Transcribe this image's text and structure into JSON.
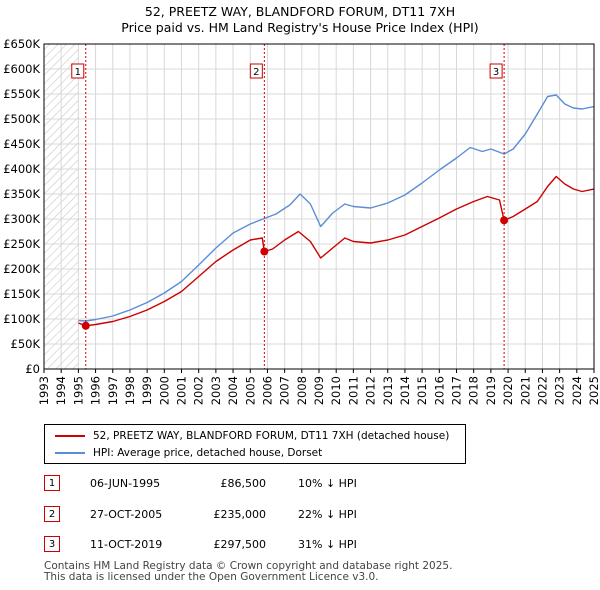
{
  "title_line1": "52, PREETZ WAY, BLANDFORD FORUM, DT11 7XH",
  "title_line2": "Price paid vs. HM Land Registry's House Price Index (HPI)",
  "colors": {
    "price": "#cc0000",
    "hpi": "#5b8dd6",
    "grid": "#d8d8d8",
    "hatch": "#c8c8c8",
    "shade": "#e4ecf8"
  },
  "chart_data": {
    "type": "line",
    "title": "52, PREETZ WAY, BLANDFORD FORUM, DT11 7XH — Price paid vs. HM Land Registry's House Price Index (HPI)",
    "xlim": [
      1993,
      2025
    ],
    "ylim": [
      0,
      650000
    ],
    "x_ticks": [
      "1993",
      "1994",
      "1995",
      "1996",
      "1997",
      "1998",
      "1999",
      "2000",
      "2001",
      "2002",
      "2003",
      "2004",
      "2005",
      "2006",
      "2007",
      "2008",
      "2009",
      "2010",
      "2011",
      "2012",
      "2013",
      "2014",
      "2015",
      "2016",
      "2017",
      "2018",
      "2019",
      "2020",
      "2021",
      "2022",
      "2023",
      "2024",
      "2025"
    ],
    "y_ticks": [
      {
        "value": 0,
        "label": "£0"
      },
      {
        "value": 50000,
        "label": "£50K"
      },
      {
        "value": 100000,
        "label": "£100K"
      },
      {
        "value": 150000,
        "label": "£150K"
      },
      {
        "value": 200000,
        "label": "£200K"
      },
      {
        "value": 250000,
        "label": "£250K"
      },
      {
        "value": 300000,
        "label": "£300K"
      },
      {
        "value": 350000,
        "label": "£350K"
      },
      {
        "value": 400000,
        "label": "£400K"
      },
      {
        "value": 450000,
        "label": "£450K"
      },
      {
        "value": 500000,
        "label": "£500K"
      },
      {
        "value": 550000,
        "label": "£550K"
      },
      {
        "value": 600000,
        "label": "£600K"
      },
      {
        "value": 650000,
        "label": "£650K"
      }
    ],
    "grid": true,
    "data_start": 1995.0,
    "series": [
      {
        "name": "52, PREETZ WAY, BLANDFORD FORUM, DT11 7XH (detached house)",
        "color": "#cc0000",
        "points": [
          [
            1995.0,
            92000
          ],
          [
            1995.43,
            86500
          ],
          [
            1996.0,
            89000
          ],
          [
            1997.0,
            95000
          ],
          [
            1998.0,
            105000
          ],
          [
            1999.0,
            118000
          ],
          [
            2000.0,
            135000
          ],
          [
            2001.0,
            155000
          ],
          [
            2002.0,
            185000
          ],
          [
            2003.0,
            215000
          ],
          [
            2004.0,
            238000
          ],
          [
            2005.0,
            258000
          ],
          [
            2005.7,
            262000
          ],
          [
            2005.82,
            235000
          ],
          [
            2006.3,
            240000
          ],
          [
            2007.0,
            258000
          ],
          [
            2007.8,
            275000
          ],
          [
            2008.5,
            255000
          ],
          [
            2009.1,
            222000
          ],
          [
            2009.8,
            242000
          ],
          [
            2010.5,
            262000
          ],
          [
            2011.0,
            255000
          ],
          [
            2012.0,
            252000
          ],
          [
            2013.0,
            258000
          ],
          [
            2014.0,
            268000
          ],
          [
            2015.0,
            285000
          ],
          [
            2016.0,
            302000
          ],
          [
            2017.0,
            320000
          ],
          [
            2018.0,
            335000
          ],
          [
            2018.8,
            345000
          ],
          [
            2019.5,
            338000
          ],
          [
            2019.77,
            297500
          ],
          [
            2020.3,
            305000
          ],
          [
            2021.0,
            320000
          ],
          [
            2021.7,
            335000
          ],
          [
            2022.3,
            365000
          ],
          [
            2022.8,
            385000
          ],
          [
            2023.3,
            370000
          ],
          [
            2023.8,
            360000
          ],
          [
            2024.3,
            355000
          ],
          [
            2025.0,
            360000
          ]
        ]
      },
      {
        "name": "HPI: Average price, detached house, Dorset",
        "color": "#5b8dd6",
        "points": [
          [
            1995.0,
            97000
          ],
          [
            1995.43,
            96000
          ],
          [
            1996.0,
            99000
          ],
          [
            1997.0,
            106000
          ],
          [
            1998.0,
            118000
          ],
          [
            1999.0,
            133000
          ],
          [
            2000.0,
            152000
          ],
          [
            2001.0,
            175000
          ],
          [
            2002.0,
            208000
          ],
          [
            2003.0,
            242000
          ],
          [
            2004.0,
            272000
          ],
          [
            2005.0,
            290000
          ],
          [
            2005.82,
            301000
          ],
          [
            2006.5,
            310000
          ],
          [
            2007.3,
            328000
          ],
          [
            2007.9,
            350000
          ],
          [
            2008.5,
            330000
          ],
          [
            2009.1,
            285000
          ],
          [
            2009.8,
            312000
          ],
          [
            2010.5,
            330000
          ],
          [
            2011.0,
            325000
          ],
          [
            2012.0,
            322000
          ],
          [
            2013.0,
            332000
          ],
          [
            2014.0,
            348000
          ],
          [
            2015.0,
            372000
          ],
          [
            2016.0,
            398000
          ],
          [
            2017.0,
            422000
          ],
          [
            2017.8,
            443000
          ],
          [
            2018.5,
            435000
          ],
          [
            2019.0,
            440000
          ],
          [
            2019.77,
            430000
          ],
          [
            2020.3,
            440000
          ],
          [
            2021.0,
            470000
          ],
          [
            2021.7,
            510000
          ],
          [
            2022.3,
            545000
          ],
          [
            2022.8,
            548000
          ],
          [
            2023.3,
            530000
          ],
          [
            2023.8,
            522000
          ],
          [
            2024.3,
            520000
          ],
          [
            2025.0,
            525000
          ]
        ]
      }
    ],
    "markers": [
      {
        "label": "1",
        "x": 1995.43,
        "y": 86500
      },
      {
        "label": "2",
        "x": 2005.82,
        "y": 235000
      },
      {
        "label": "3",
        "x": 2019.77,
        "y": 297500
      }
    ]
  },
  "legend": {
    "price_label": "52, PREETZ WAY, BLANDFORD FORUM, DT11 7XH (detached house)",
    "hpi_label": "HPI: Average price, detached house, Dorset"
  },
  "transactions": [
    {
      "num": "1",
      "date": "06-JUN-1995",
      "price": "£86,500",
      "hpi": "10% ↓ HPI"
    },
    {
      "num": "2",
      "date": "27-OCT-2005",
      "price": "£235,000",
      "hpi": "22% ↓ HPI"
    },
    {
      "num": "3",
      "date": "11-OCT-2019",
      "price": "£297,500",
      "hpi": "31% ↓ HPI"
    }
  ],
  "footer_line1": "Contains HM Land Registry data © Crown copyright and database right 2025.",
  "footer_line2": "This data is licensed under the Open Government Licence v3.0."
}
